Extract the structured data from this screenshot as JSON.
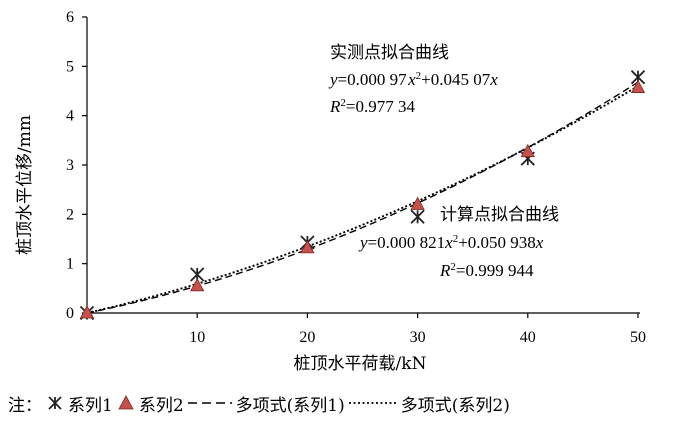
{
  "chart_data": {
    "type": "scatter",
    "xlabel": "桩顶水平荷载/kN",
    "ylabel": "桩顶水平位移/mm",
    "xlim": [
      0,
      50
    ],
    "ylim": [
      0,
      6
    ],
    "x_ticks": [
      "10",
      "20",
      "30",
      "40",
      "50"
    ],
    "y_ticks": [
      "0",
      "1",
      "2",
      "3",
      "4",
      "5",
      "6"
    ],
    "grid": false,
    "series": [
      {
        "name": "系列1",
        "marker": "asterisk",
        "color": "#222222",
        "x": [
          0,
          10,
          20,
          30,
          40,
          50
        ],
        "y": [
          0,
          0.78,
          1.43,
          1.95,
          3.13,
          4.78
        ]
      },
      {
        "name": "系列2",
        "marker": "triangle",
        "color": "#c8504a",
        "x": [
          0,
          10,
          20,
          30,
          40,
          50
        ],
        "y": [
          0,
          0.55,
          1.32,
          2.2,
          3.27,
          4.57
        ]
      },
      {
        "name": "多项式(系列1)",
        "style": "dashed",
        "fit": "polynomial",
        "coefficients": {
          "a": 0.00097,
          "b": 0.04507
        }
      },
      {
        "name": "多项式(系列2)",
        "style": "dotted",
        "fit": "polynomial",
        "coefficients": {
          "a": 0.000821,
          "b": 0.050938
        }
      }
    ],
    "annotations": [
      {
        "title": "实测点拟合曲线",
        "equation": {
          "y": "y",
          "eq": "=0.000 97",
          "x1": "x",
          "sup": "2",
          "mid": "+0.045 07",
          "x2": "x"
        },
        "r2": {
          "R": "R",
          "sup": "2",
          "val": "=0.977 34"
        }
      },
      {
        "title": "计算点拟合曲线",
        "equation": {
          "y": "y",
          "eq": "=0.000 821",
          "x1": "x",
          "sup": "2",
          "mid": "+0.050 938",
          "x2": "x"
        },
        "r2": {
          "R": "R",
          "sup": "2",
          "val": "=0.999 944"
        }
      }
    ]
  },
  "legend": {
    "prefix": "注：",
    "items": [
      "系列1",
      "系列2",
      "多项式(系列1)",
      "多项式(系列2)"
    ]
  },
  "colors": {
    "triangle_fill": "#c8504a",
    "asterisk": "#222222",
    "axis": "#000000"
  }
}
